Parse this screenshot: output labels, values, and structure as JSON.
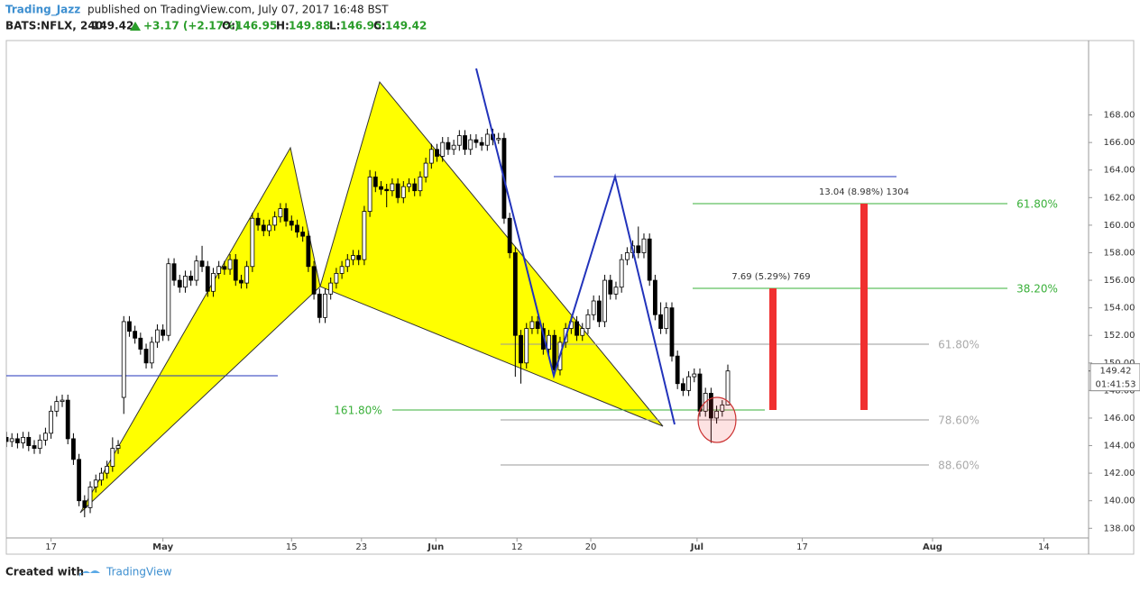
{
  "header": {
    "author": "Trading_Jazz",
    "published": "published on TradingView.com, July 07, 2017 16:48 BST",
    "symbol": "BATS:NFLX, 240",
    "change": "+3.17 (+2.17%)",
    "open_label": "O:",
    "high_label": "H:",
    "low_label": "L:",
    "close_label": "C:"
  },
  "chart_data": {
    "type": "candlestick",
    "x": [
      -8,
      -7,
      -6,
      -5,
      -4,
      -3,
      -2,
      -1,
      0,
      1,
      2,
      3,
      4,
      5,
      6,
      7,
      8,
      9,
      10,
      11,
      12,
      13,
      14,
      15,
      16,
      17,
      18,
      19,
      20,
      21,
      22,
      23,
      24,
      25,
      26,
      27,
      28,
      29,
      30,
      31,
      32,
      33,
      34,
      35,
      36,
      37,
      38,
      39,
      40,
      41,
      42,
      43,
      44,
      45,
      46,
      47,
      48,
      49,
      50,
      51,
      52,
      53,
      54,
      55,
      56,
      57,
      58,
      59,
      60,
      61,
      62,
      63,
      64,
      65,
      66,
      67,
      68,
      69,
      70,
      71,
      72,
      73,
      74,
      75,
      76,
      77,
      78,
      79,
      80,
      81,
      82,
      83,
      84,
      85,
      86,
      87,
      88,
      89,
      90,
      91,
      92,
      93,
      94,
      95,
      96,
      97,
      98,
      99,
      100,
      101,
      102,
      103,
      104,
      105,
      106,
      107,
      108,
      109,
      110,
      111,
      112,
      113,
      114,
      115,
      116,
      117,
      118,
      119,
      120,
      121
    ],
    "candles": [
      [
        144.6,
        145.0,
        143.9,
        144.3
      ],
      [
        144.3,
        144.9,
        143.9,
        144.5
      ],
      [
        144.5,
        144.9,
        143.8,
        144.2
      ],
      [
        144.2,
        145.0,
        143.8,
        144.6
      ],
      [
        144.6,
        145.0,
        143.6,
        144.0
      ],
      [
        144.0,
        144.4,
        143.4,
        143.8
      ],
      [
        143.8,
        144.8,
        143.4,
        144.4
      ],
      [
        144.4,
        145.3,
        144.0,
        144.9
      ],
      [
        144.9,
        146.9,
        144.5,
        146.5
      ],
      [
        146.5,
        147.6,
        146.1,
        147.2
      ],
      [
        147.2,
        147.7,
        146.8,
        147.3
      ],
      [
        147.3,
        147.7,
        144.1,
        144.5
      ],
      [
        144.5,
        144.9,
        142.6,
        143.0
      ],
      [
        143.0,
        143.4,
        139.6,
        140.0
      ],
      [
        140.0,
        140.4,
        138.8,
        139.5
      ],
      [
        139.5,
        141.4,
        139.1,
        141.0
      ],
      [
        141.0,
        141.9,
        140.6,
        141.5
      ],
      [
        141.5,
        142.4,
        141.1,
        142.0
      ],
      [
        142.0,
        142.9,
        141.6,
        142.5
      ],
      [
        142.5,
        144.6,
        142.1,
        143.8
      ],
      [
        143.8,
        144.4,
        143.4,
        144.0
      ],
      [
        147.5,
        153.4,
        146.3,
        153.0
      ],
      [
        153.0,
        153.4,
        151.9,
        152.3
      ],
      [
        152.3,
        152.7,
        151.4,
        151.8
      ],
      [
        151.8,
        152.2,
        150.6,
        151.0
      ],
      [
        151.0,
        151.4,
        149.6,
        150.0
      ],
      [
        150.0,
        151.9,
        149.6,
        151.5
      ],
      [
        151.5,
        152.8,
        151.1,
        152.4
      ],
      [
        152.4,
        152.8,
        151.6,
        152.0
      ],
      [
        152.0,
        157.6,
        151.6,
        157.2
      ],
      [
        157.2,
        157.6,
        155.6,
        156.0
      ],
      [
        156.0,
        156.4,
        155.1,
        155.5
      ],
      [
        155.5,
        156.7,
        155.1,
        156.3
      ],
      [
        156.3,
        156.7,
        155.6,
        156.0
      ],
      [
        156.0,
        157.8,
        155.6,
        157.4
      ],
      [
        157.4,
        158.5,
        156.6,
        157.0
      ],
      [
        157.0,
        157.4,
        154.8,
        155.2
      ],
      [
        155.2,
        156.9,
        154.8,
        156.5
      ],
      [
        156.5,
        157.4,
        156.1,
        157.0
      ],
      [
        157.0,
        157.4,
        156.4,
        156.8
      ],
      [
        156.8,
        157.9,
        156.4,
        157.5
      ],
      [
        157.5,
        157.9,
        155.6,
        156.0
      ],
      [
        156.0,
        156.4,
        155.4,
        155.8
      ],
      [
        155.8,
        157.4,
        155.4,
        157.0
      ],
      [
        157.0,
        160.9,
        156.6,
        160.5
      ],
      [
        160.5,
        160.9,
        159.6,
        160.0
      ],
      [
        160.0,
        160.4,
        159.2,
        159.6
      ],
      [
        159.6,
        160.4,
        159.2,
        160.0
      ],
      [
        160.0,
        161.0,
        159.6,
        160.6
      ],
      [
        160.6,
        161.6,
        160.2,
        161.2
      ],
      [
        161.2,
        161.6,
        159.9,
        160.3
      ],
      [
        160.3,
        160.7,
        159.6,
        160.0
      ],
      [
        160.0,
        160.4,
        159.1,
        159.5
      ],
      [
        159.5,
        159.9,
        158.8,
        159.2
      ],
      [
        159.2,
        159.6,
        156.6,
        157.0
      ],
      [
        157.0,
        157.4,
        154.6,
        155.0
      ],
      [
        155.0,
        155.4,
        152.9,
        153.3
      ],
      [
        153.3,
        155.4,
        152.9,
        155.0
      ],
      [
        155.0,
        156.2,
        154.6,
        155.8
      ],
      [
        155.8,
        156.9,
        155.4,
        156.5
      ],
      [
        156.5,
        157.4,
        156.1,
        157.0
      ],
      [
        157.0,
        157.9,
        156.6,
        157.5
      ],
      [
        157.5,
        158.2,
        157.1,
        157.8
      ],
      [
        157.8,
        158.2,
        157.1,
        157.5
      ],
      [
        157.5,
        161.4,
        157.1,
        161.0
      ],
      [
        161.0,
        164.0,
        160.6,
        163.5
      ],
      [
        163.5,
        163.9,
        162.4,
        162.8
      ],
      [
        162.8,
        163.2,
        162.2,
        162.6
      ],
      [
        162.6,
        163.0,
        161.3,
        162.5
      ],
      [
        162.5,
        163.4,
        162.1,
        163.0
      ],
      [
        163.0,
        163.4,
        161.6,
        162.0
      ],
      [
        162.0,
        163.2,
        161.6,
        162.8
      ],
      [
        162.8,
        163.4,
        162.4,
        163.0
      ],
      [
        163.0,
        163.4,
        162.1,
        162.5
      ],
      [
        162.5,
        163.9,
        162.1,
        163.5
      ],
      [
        163.5,
        164.9,
        163.1,
        164.5
      ],
      [
        164.5,
        165.9,
        164.1,
        165.5
      ],
      [
        165.5,
        165.9,
        164.6,
        165.0
      ],
      [
        165.0,
        166.4,
        164.6,
        166.0
      ],
      [
        166.0,
        166.4,
        165.1,
        165.5
      ],
      [
        165.5,
        166.2,
        165.1,
        165.8
      ],
      [
        165.8,
        166.9,
        165.4,
        166.5
      ],
      [
        166.5,
        166.9,
        165.1,
        165.5
      ],
      [
        165.5,
        166.6,
        165.1,
        166.2
      ],
      [
        166.2,
        166.6,
        165.6,
        166.0
      ],
      [
        166.0,
        166.4,
        165.4,
        165.8
      ],
      [
        165.8,
        167.0,
        165.4,
        166.6
      ],
      [
        166.6,
        167.0,
        165.8,
        166.2
      ],
      [
        166.2,
        166.7,
        165.9,
        166.3
      ],
      [
        166.3,
        166.7,
        160.1,
        160.5
      ],
      [
        160.5,
        160.9,
        157.6,
        158.0
      ],
      [
        158.0,
        158.4,
        149.0,
        152.0
      ],
      [
        152.0,
        152.4,
        148.5,
        150.0
      ],
      [
        150.0,
        152.9,
        149.6,
        152.5
      ],
      [
        152.5,
        153.4,
        152.1,
        153.0
      ],
      [
        153.0,
        153.4,
        152.1,
        152.5
      ],
      [
        152.5,
        152.9,
        150.6,
        151.0
      ],
      [
        151.0,
        152.4,
        150.6,
        152.0
      ],
      [
        152.0,
        152.4,
        149.1,
        149.5
      ],
      [
        149.5,
        151.9,
        149.1,
        151.5
      ],
      [
        151.5,
        152.9,
        151.1,
        152.5
      ],
      [
        152.5,
        153.4,
        152.1,
        153.0
      ],
      [
        153.0,
        153.4,
        151.6,
        152.0
      ],
      [
        152.0,
        152.9,
        151.6,
        152.5
      ],
      [
        152.5,
        153.9,
        152.1,
        153.5
      ],
      [
        153.5,
        154.9,
        153.1,
        154.5
      ],
      [
        154.5,
        154.9,
        152.6,
        153.0
      ],
      [
        153.0,
        156.4,
        152.6,
        156.0
      ],
      [
        156.0,
        156.4,
        154.6,
        155.0
      ],
      [
        155.0,
        155.9,
        154.6,
        155.5
      ],
      [
        155.5,
        157.9,
        155.1,
        157.5
      ],
      [
        157.5,
        158.4,
        157.1,
        158.0
      ],
      [
        158.0,
        158.9,
        157.6,
        158.5
      ],
      [
        158.5,
        159.9,
        157.6,
        158.0
      ],
      [
        158.0,
        159.4,
        157.6,
        159.0
      ],
      [
        159.0,
        159.4,
        155.6,
        156.0
      ],
      [
        156.0,
        156.4,
        153.1,
        153.5
      ],
      [
        153.5,
        154.4,
        152.1,
        152.5
      ],
      [
        152.5,
        154.4,
        152.1,
        154.0
      ],
      [
        154.0,
        154.4,
        150.1,
        150.5
      ],
      [
        150.5,
        150.9,
        148.1,
        148.5
      ],
      [
        148.5,
        148.9,
        147.6,
        148.0
      ],
      [
        148.0,
        149.4,
        147.6,
        149.0
      ],
      [
        149.0,
        149.6,
        148.6,
        149.2
      ],
      [
        149.2,
        149.6,
        146.1,
        146.5
      ],
      [
        146.5,
        148.2,
        146.1,
        147.8
      ],
      [
        147.8,
        148.2,
        144.2,
        146.0
      ],
      [
        146.0,
        146.9,
        145.6,
        146.5
      ],
      [
        146.5,
        147.3,
        146.1,
        146.95
      ],
      [
        146.95,
        149.88,
        146.95,
        149.42
      ]
    ],
    "up_color": "#ffffff",
    "down_color": "#000000",
    "outline_color": "#000000",
    "xlim": [
      -8,
      185.5
    ],
    "xticks": [
      {
        "value": 0,
        "label": "17"
      },
      {
        "value": 20,
        "label": "May"
      },
      {
        "value": 43,
        "label": "15"
      },
      {
        "value": 55.5,
        "label": "23"
      },
      {
        "value": 68.8,
        "label": "Jun"
      },
      {
        "value": 83.3,
        "label": "12"
      },
      {
        "value": 96.5,
        "label": "20"
      },
      {
        "value": 115.5,
        "label": "Jul"
      },
      {
        "value": 134.3,
        "label": "17"
      },
      {
        "value": 157.6,
        "label": "Aug"
      },
      {
        "value": 177.5,
        "label": "14"
      }
    ],
    "ylim": [
      137.3,
      173.4
    ],
    "yticks": [
      {
        "value": 138,
        "label": "138.00"
      },
      {
        "value": 140,
        "label": "140.00"
      },
      {
        "value": 142,
        "label": "142.00"
      },
      {
        "value": 144,
        "label": "144.00"
      },
      {
        "value": 146,
        "label": "146.00"
      },
      {
        "value": 148,
        "label": "148.00"
      },
      {
        "value": 150,
        "label": "150.00"
      },
      {
        "value": 152,
        "label": "152.00"
      },
      {
        "value": 154,
        "label": "154.00"
      },
      {
        "value": 156,
        "label": "156.00"
      },
      {
        "value": 158,
        "label": "158.00"
      },
      {
        "value": 160,
        "label": "160.00"
      },
      {
        "value": 162,
        "label": "162.00"
      },
      {
        "value": 164,
        "label": "164.00"
      },
      {
        "value": 166,
        "label": "166.00"
      },
      {
        "value": 168,
        "label": "168.00"
      }
    ],
    "grid": false,
    "countdown": "01:41:53",
    "annotations": {
      "ext_161": "161.80%",
      "proj_618": "61.80%",
      "proj_382": "38.20%",
      "ret_618": "61.80%",
      "ret_786": "78.60%",
      "ret_886": "88.60%",
      "range_small": "7.69 (5.29%) 769",
      "range_large": "13.04 (8.98%) 1304"
    }
  },
  "footer": {
    "created": "Created with",
    "brand": "TradingView"
  }
}
